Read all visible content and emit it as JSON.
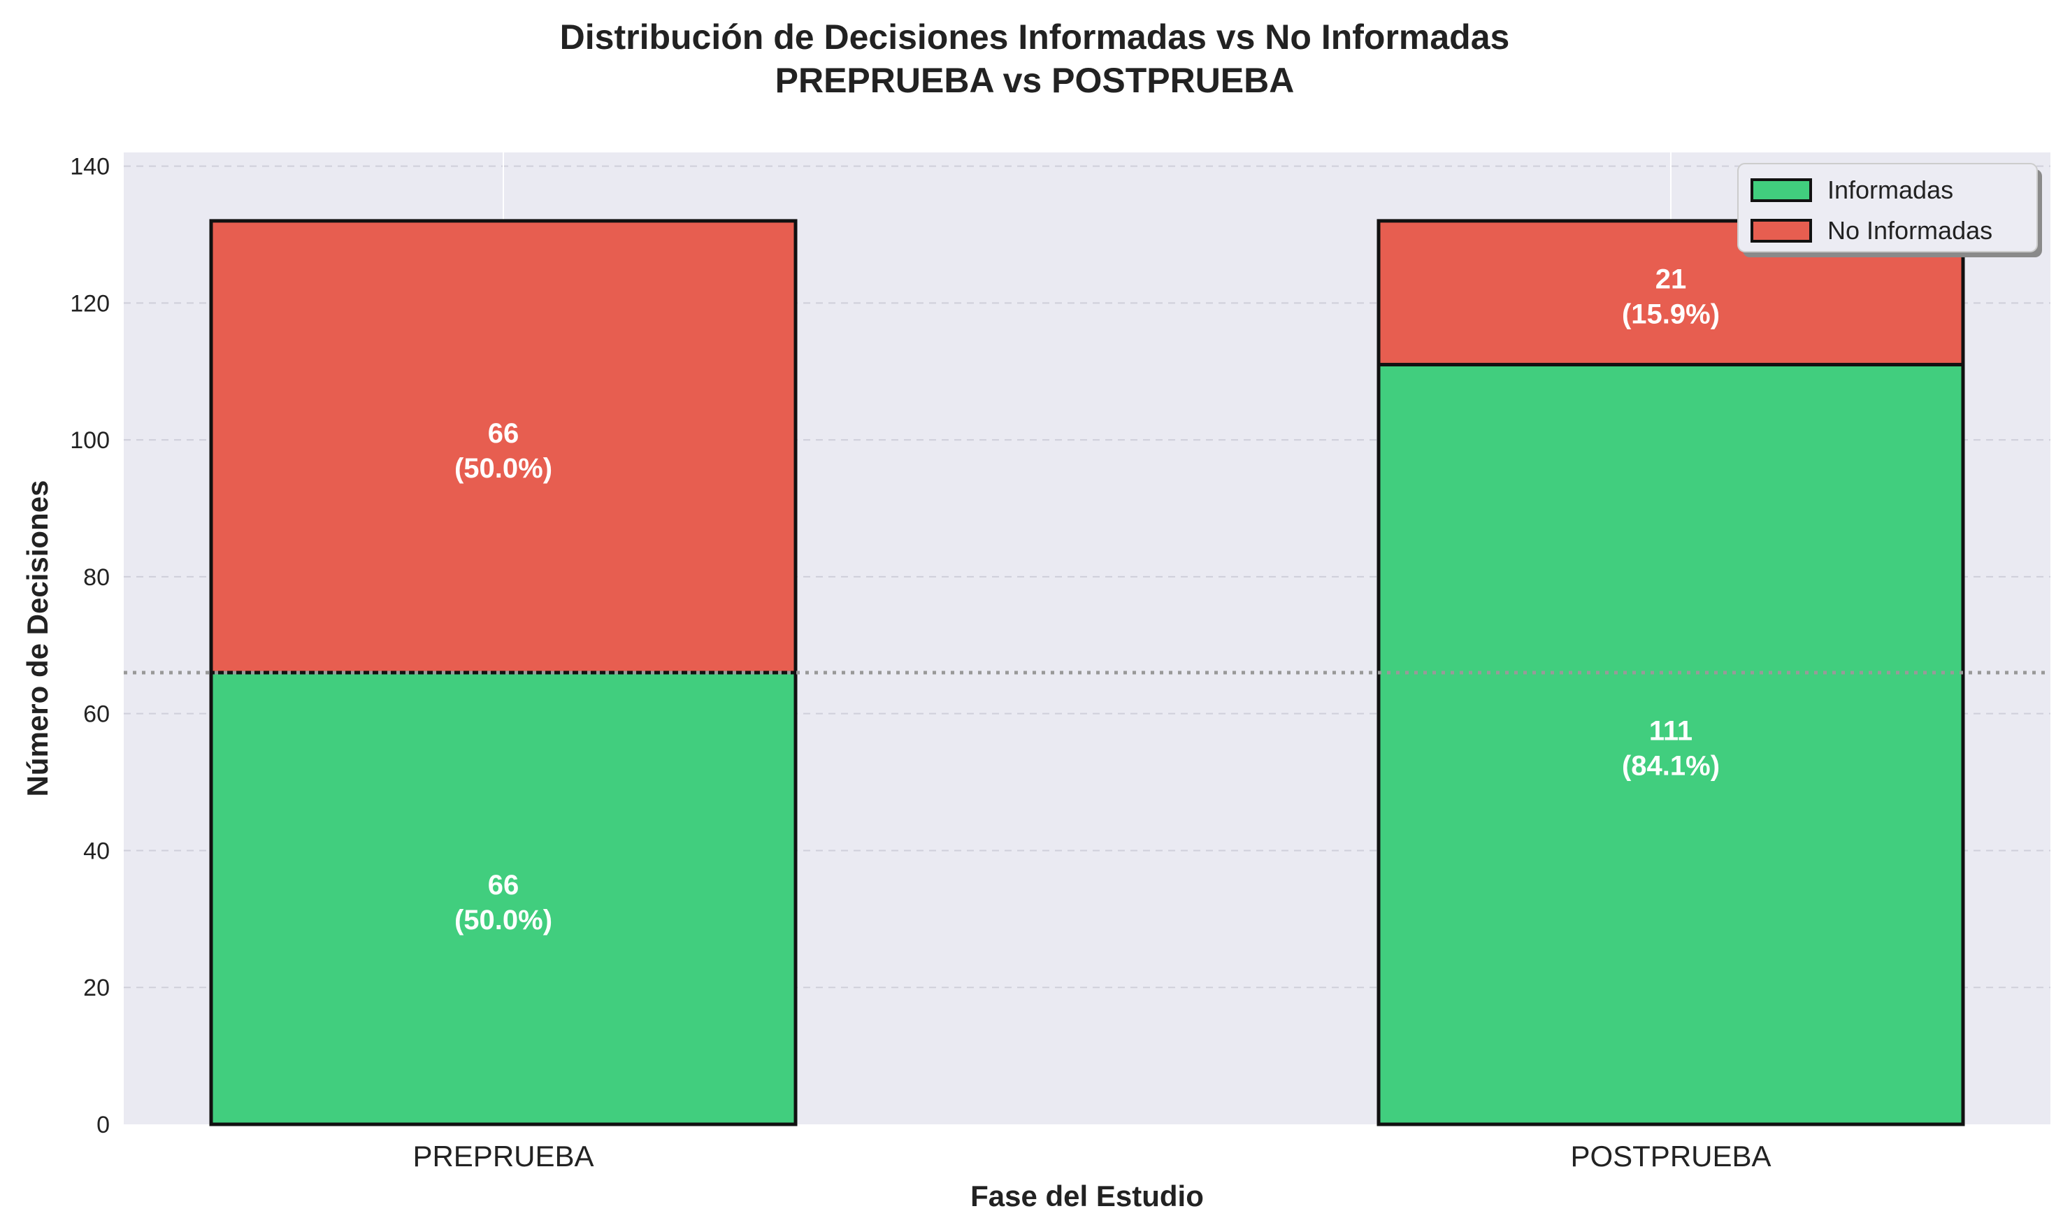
{
  "chart_data": {
    "type": "bar",
    "stacked": true,
    "title": "Distribución de Decisiones Informadas vs No Informadas",
    "subtitle": "PREPRUEBA vs POSTPRUEBA",
    "xlabel": "Fase del Estudio",
    "ylabel": "Número de Decisiones",
    "categories": [
      "PREPRUEBA",
      "POSTPRUEBA"
    ],
    "series": [
      {
        "name": "Informadas",
        "values": [
          66,
          111
        ],
        "labels": [
          "(50.0%)",
          "(84.1%)"
        ],
        "color": "#41ce7e"
      },
      {
        "name": "No Informadas",
        "values": [
          66,
          21
        ],
        "labels": [
          "(50.0%)",
          "(15.9%)"
        ],
        "color": "#e75e50"
      }
    ],
    "ylim": [
      0,
      142
    ],
    "yticks": [
      0,
      20,
      40,
      60,
      80,
      100,
      120,
      140
    ],
    "reference_line": {
      "y": 66,
      "style": "dotted",
      "color": "#999999"
    },
    "grid": true,
    "legend_position": "top-right",
    "background_color": "#eaeaf2"
  }
}
